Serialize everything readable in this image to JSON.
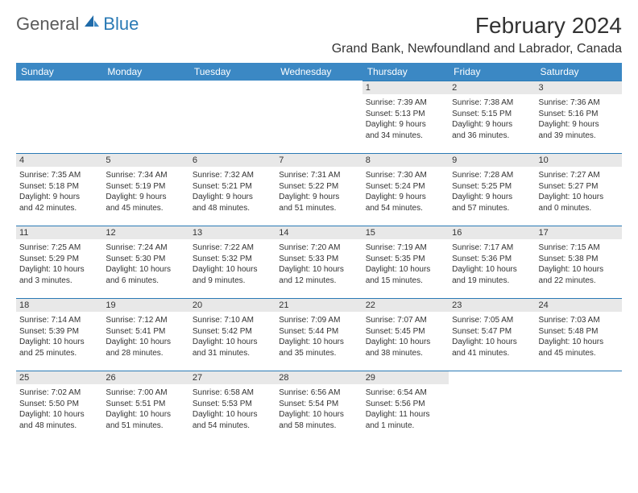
{
  "brand": {
    "general": "General",
    "blue": "Blue"
  },
  "title": "February 2024",
  "location": "Grand Bank, Newfoundland and Labrador, Canada",
  "colors": {
    "header_bg": "#3b88c4",
    "accent": "#2a7ab5",
    "daynum_bg": "#e8e8e8",
    "text": "#333333",
    "page_bg": "#ffffff"
  },
  "typography": {
    "title_fontsize": 28,
    "location_fontsize": 16,
    "header_fontsize": 12,
    "daynum_fontsize": 11,
    "body_fontsize": 10
  },
  "dayHeaders": [
    "Sunday",
    "Monday",
    "Tuesday",
    "Wednesday",
    "Thursday",
    "Friday",
    "Saturday"
  ],
  "weeks": [
    [
      null,
      null,
      null,
      null,
      {
        "n": "1",
        "sr": "Sunrise: 7:39 AM",
        "ss": "Sunset: 5:13 PM",
        "d1": "Daylight: 9 hours",
        "d2": "and 34 minutes."
      },
      {
        "n": "2",
        "sr": "Sunrise: 7:38 AM",
        "ss": "Sunset: 5:15 PM",
        "d1": "Daylight: 9 hours",
        "d2": "and 36 minutes."
      },
      {
        "n": "3",
        "sr": "Sunrise: 7:36 AM",
        "ss": "Sunset: 5:16 PM",
        "d1": "Daylight: 9 hours",
        "d2": "and 39 minutes."
      }
    ],
    [
      {
        "n": "4",
        "sr": "Sunrise: 7:35 AM",
        "ss": "Sunset: 5:18 PM",
        "d1": "Daylight: 9 hours",
        "d2": "and 42 minutes."
      },
      {
        "n": "5",
        "sr": "Sunrise: 7:34 AM",
        "ss": "Sunset: 5:19 PM",
        "d1": "Daylight: 9 hours",
        "d2": "and 45 minutes."
      },
      {
        "n": "6",
        "sr": "Sunrise: 7:32 AM",
        "ss": "Sunset: 5:21 PM",
        "d1": "Daylight: 9 hours",
        "d2": "and 48 minutes."
      },
      {
        "n": "7",
        "sr": "Sunrise: 7:31 AM",
        "ss": "Sunset: 5:22 PM",
        "d1": "Daylight: 9 hours",
        "d2": "and 51 minutes."
      },
      {
        "n": "8",
        "sr": "Sunrise: 7:30 AM",
        "ss": "Sunset: 5:24 PM",
        "d1": "Daylight: 9 hours",
        "d2": "and 54 minutes."
      },
      {
        "n": "9",
        "sr": "Sunrise: 7:28 AM",
        "ss": "Sunset: 5:25 PM",
        "d1": "Daylight: 9 hours",
        "d2": "and 57 minutes."
      },
      {
        "n": "10",
        "sr": "Sunrise: 7:27 AM",
        "ss": "Sunset: 5:27 PM",
        "d1": "Daylight: 10 hours",
        "d2": "and 0 minutes."
      }
    ],
    [
      {
        "n": "11",
        "sr": "Sunrise: 7:25 AM",
        "ss": "Sunset: 5:29 PM",
        "d1": "Daylight: 10 hours",
        "d2": "and 3 minutes."
      },
      {
        "n": "12",
        "sr": "Sunrise: 7:24 AM",
        "ss": "Sunset: 5:30 PM",
        "d1": "Daylight: 10 hours",
        "d2": "and 6 minutes."
      },
      {
        "n": "13",
        "sr": "Sunrise: 7:22 AM",
        "ss": "Sunset: 5:32 PM",
        "d1": "Daylight: 10 hours",
        "d2": "and 9 minutes."
      },
      {
        "n": "14",
        "sr": "Sunrise: 7:20 AM",
        "ss": "Sunset: 5:33 PM",
        "d1": "Daylight: 10 hours",
        "d2": "and 12 minutes."
      },
      {
        "n": "15",
        "sr": "Sunrise: 7:19 AM",
        "ss": "Sunset: 5:35 PM",
        "d1": "Daylight: 10 hours",
        "d2": "and 15 minutes."
      },
      {
        "n": "16",
        "sr": "Sunrise: 7:17 AM",
        "ss": "Sunset: 5:36 PM",
        "d1": "Daylight: 10 hours",
        "d2": "and 19 minutes."
      },
      {
        "n": "17",
        "sr": "Sunrise: 7:15 AM",
        "ss": "Sunset: 5:38 PM",
        "d1": "Daylight: 10 hours",
        "d2": "and 22 minutes."
      }
    ],
    [
      {
        "n": "18",
        "sr": "Sunrise: 7:14 AM",
        "ss": "Sunset: 5:39 PM",
        "d1": "Daylight: 10 hours",
        "d2": "and 25 minutes."
      },
      {
        "n": "19",
        "sr": "Sunrise: 7:12 AM",
        "ss": "Sunset: 5:41 PM",
        "d1": "Daylight: 10 hours",
        "d2": "and 28 minutes."
      },
      {
        "n": "20",
        "sr": "Sunrise: 7:10 AM",
        "ss": "Sunset: 5:42 PM",
        "d1": "Daylight: 10 hours",
        "d2": "and 31 minutes."
      },
      {
        "n": "21",
        "sr": "Sunrise: 7:09 AM",
        "ss": "Sunset: 5:44 PM",
        "d1": "Daylight: 10 hours",
        "d2": "and 35 minutes."
      },
      {
        "n": "22",
        "sr": "Sunrise: 7:07 AM",
        "ss": "Sunset: 5:45 PM",
        "d1": "Daylight: 10 hours",
        "d2": "and 38 minutes."
      },
      {
        "n": "23",
        "sr": "Sunrise: 7:05 AM",
        "ss": "Sunset: 5:47 PM",
        "d1": "Daylight: 10 hours",
        "d2": "and 41 minutes."
      },
      {
        "n": "24",
        "sr": "Sunrise: 7:03 AM",
        "ss": "Sunset: 5:48 PM",
        "d1": "Daylight: 10 hours",
        "d2": "and 45 minutes."
      }
    ],
    [
      {
        "n": "25",
        "sr": "Sunrise: 7:02 AM",
        "ss": "Sunset: 5:50 PM",
        "d1": "Daylight: 10 hours",
        "d2": "and 48 minutes."
      },
      {
        "n": "26",
        "sr": "Sunrise: 7:00 AM",
        "ss": "Sunset: 5:51 PM",
        "d1": "Daylight: 10 hours",
        "d2": "and 51 minutes."
      },
      {
        "n": "27",
        "sr": "Sunrise: 6:58 AM",
        "ss": "Sunset: 5:53 PM",
        "d1": "Daylight: 10 hours",
        "d2": "and 54 minutes."
      },
      {
        "n": "28",
        "sr": "Sunrise: 6:56 AM",
        "ss": "Sunset: 5:54 PM",
        "d1": "Daylight: 10 hours",
        "d2": "and 58 minutes."
      },
      {
        "n": "29",
        "sr": "Sunrise: 6:54 AM",
        "ss": "Sunset: 5:56 PM",
        "d1": "Daylight: 11 hours",
        "d2": "and 1 minute."
      },
      null,
      null
    ]
  ]
}
